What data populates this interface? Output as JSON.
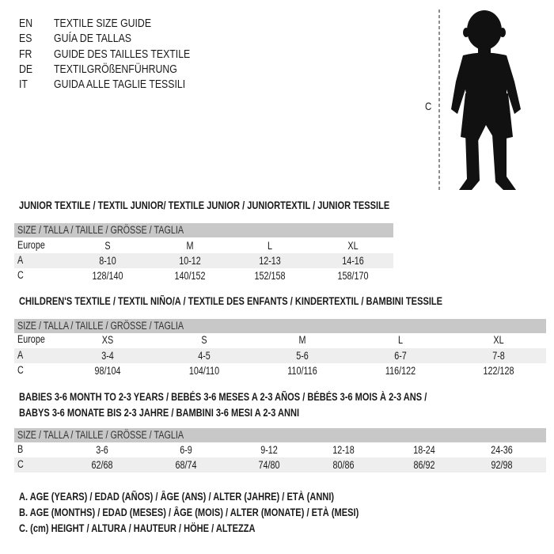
{
  "languages": [
    {
      "code": "EN",
      "title": "TEXTILE SIZE GUIDE"
    },
    {
      "code": "ES",
      "title": "GUÍA DE TALLAS"
    },
    {
      "code": "FR",
      "title": "GUIDE DES TAILLES TEXTILE"
    },
    {
      "code": "DE",
      "title": "TEXTILGRÖßENFÜHRUNG"
    },
    {
      "code": "IT",
      "title": "GUIDA ALLE TAGLIE TESSILI"
    }
  ],
  "figure": {
    "measure_label": "C",
    "icon": "baby-silhouette-icon"
  },
  "junior": {
    "title": "JUNIOR TEXTILE / TEXTIL JUNIOR/ TEXTILE JUNIOR / JUNIORTEXTIL / JUNIOR TESSILE",
    "header": "SIZE / TALLA / TAILLE / GRÖSSE / TAGLIA",
    "rows": [
      {
        "label": "Europe",
        "values": [
          "S",
          "M",
          "L",
          "XL"
        ]
      },
      {
        "label": "A",
        "values": [
          "8-10",
          "10-12",
          "12-13",
          "14-16"
        ]
      },
      {
        "label": "C",
        "values": [
          "128/140",
          "140/152",
          "152/158",
          "158/170"
        ]
      }
    ]
  },
  "children": {
    "title": "CHILDREN'S TEXTILE / TEXTIL NIÑO/A / TEXTILE DES ENFANTS / KINDERTEXTIL / BAMBINI TESSILE",
    "header": "SIZE / TALLA / TAILLE / GRÖSSE / TAGLIA",
    "rows": [
      {
        "label": "Europe",
        "values": [
          "XS",
          "S",
          "M",
          "L",
          "XL"
        ]
      },
      {
        "label": "A",
        "values": [
          "3-4",
          "4-5",
          "5-6",
          "6-7",
          "7-8"
        ]
      },
      {
        "label": "C",
        "values": [
          "98/104",
          "104/110",
          "110/116",
          "116/122",
          "122/128"
        ]
      }
    ]
  },
  "babies": {
    "title_line1": "BABIES 3-6 MONTH TO 2-3 YEARS / BEBÉS 3-6 MESES A 2-3 AÑOS / BÉBÉS 3-6 MOIS À 2-3 ANS /",
    "title_line2": "BABYS 3-6 MONATE BIS 2-3 JAHRE / BAMBINI 3-6 MESI A 2-3 ANNI",
    "header": "SIZE / TALLA / TAILLE / GRÖSSE / TAGLIA",
    "rows": [
      {
        "label": "B",
        "values": [
          "3-6",
          "6-9",
          "9-12",
          "12-18",
          "18-24",
          "24-36"
        ]
      },
      {
        "label": "C",
        "values": [
          "62/68",
          "68/74",
          "74/80",
          "80/86",
          "86/92",
          "92/98"
        ]
      }
    ]
  },
  "legend": [
    "A. AGE (YEARS) / EDAD (AÑOS) / ÂGE (ANS) / ALTER (JAHRE) / ETÀ (ANNI)",
    "B. AGE (MONTHS) / EDAD (MESES) / ÂGE (MOIS) / ALTER (MONATE) / ETÀ (MESI)",
    "C. (cm) HEIGHT / ALTURA / HAUTEUR / HÖHE / ALTEZZA"
  ]
}
